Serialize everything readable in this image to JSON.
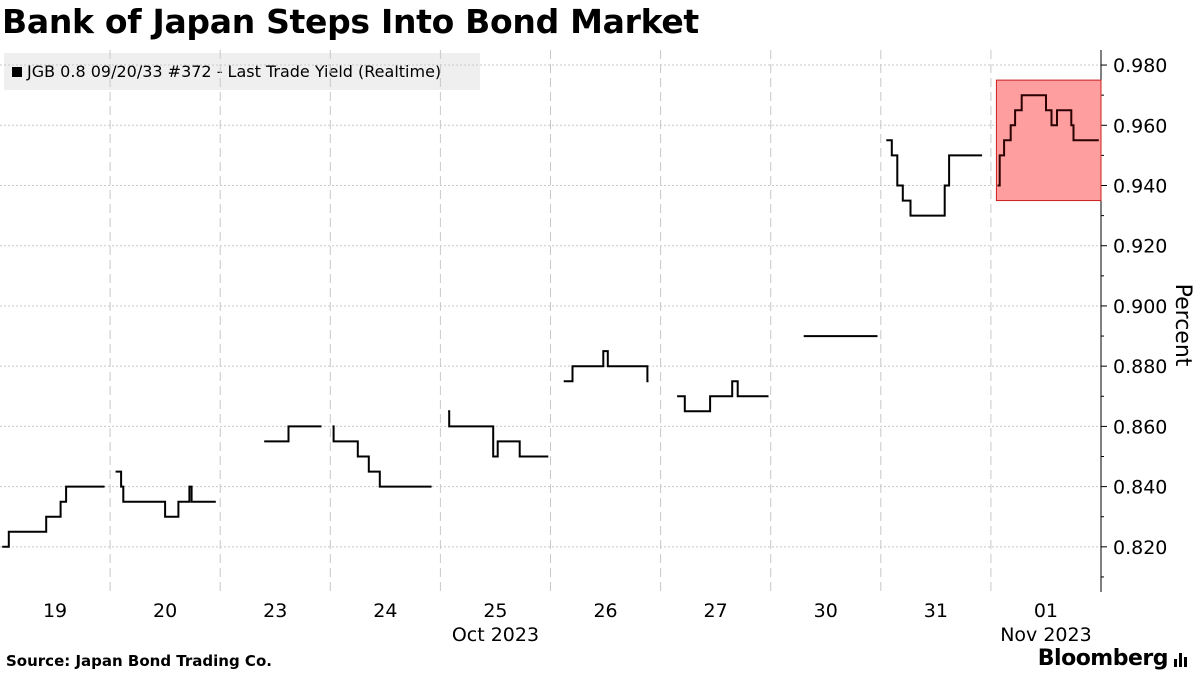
{
  "chart_data": {
    "type": "line",
    "title": "Bank of Japan Steps Into Bond Market",
    "ylabel": "Percent",
    "ylim": [
      0.805,
      0.985
    ],
    "yticks": [
      0.82,
      0.84,
      0.86,
      0.88,
      0.9,
      0.92,
      0.94,
      0.96,
      0.98
    ],
    "ytick_labels": [
      "0.820",
      "0.840",
      "0.860",
      "0.880",
      "0.900",
      "0.920",
      "0.940",
      "0.960",
      "0.980"
    ],
    "categories": [
      "19",
      "20",
      "23",
      "24",
      "25",
      "26",
      "27",
      "30",
      "31",
      "01"
    ],
    "month_labels": [
      {
        "label": "Oct 2023",
        "under_index": 4
      },
      {
        "label": "Nov 2023",
        "under_index": 9
      }
    ],
    "grid": true,
    "legend_position": "top-left",
    "line_color": "#000000",
    "highlight": {
      "day_index": 9,
      "from_frac": 0.05,
      "to_frac": 1.0,
      "y_range": [
        0.935,
        0.975
      ],
      "fill": "#ff9e9e",
      "stroke": "#cc1f1f"
    },
    "series": [
      {
        "name": "JGB 0.8 09/20/33 #372 - Last Trade Yield (Realtime)",
        "days": [
          {
            "day": 0,
            "points": [
              [
                0.02,
                0.82
              ],
              [
                0.08,
                0.825
              ],
              [
                0.42,
                0.83
              ],
              [
                0.55,
                0.835
              ],
              [
                0.6,
                0.84
              ],
              [
                0.95,
                0.84
              ]
            ]
          },
          {
            "day": 1,
            "points": [
              [
                0.05,
                0.845
              ],
              [
                0.1,
                0.84
              ],
              [
                0.12,
                0.835
              ],
              [
                0.5,
                0.83
              ],
              [
                0.62,
                0.835
              ],
              [
                0.72,
                0.84
              ],
              [
                0.74,
                0.835
              ],
              [
                0.96,
                0.835
              ]
            ]
          },
          {
            "day": 2,
            "points": [
              [
                0.4,
                0.855
              ],
              [
                0.62,
                0.86
              ],
              [
                0.92,
                0.86
              ]
            ]
          },
          {
            "day": 3,
            "points": [
              [
                0.02,
                0.86
              ],
              [
                0.03,
                0.855
              ],
              [
                0.25,
                0.85
              ],
              [
                0.35,
                0.845
              ],
              [
                0.45,
                0.84
              ],
              [
                0.92,
                0.84
              ]
            ]
          },
          {
            "day": 4,
            "points": [
              [
                0.07,
                0.865
              ],
              [
                0.08,
                0.86
              ],
              [
                0.48,
                0.85
              ],
              [
                0.52,
                0.855
              ],
              [
                0.72,
                0.85
              ],
              [
                0.98,
                0.85
              ]
            ]
          },
          {
            "day": 5,
            "points": [
              [
                0.12,
                0.875
              ],
              [
                0.2,
                0.88
              ],
              [
                0.48,
                0.885
              ],
              [
                0.52,
                0.88
              ],
              [
                0.88,
                0.875
              ],
              [
                0.89,
                0.875
              ]
            ]
          },
          {
            "day": 6,
            "points": [
              [
                0.15,
                0.87
              ],
              [
                0.22,
                0.865
              ],
              [
                0.45,
                0.87
              ],
              [
                0.65,
                0.875
              ],
              [
                0.7,
                0.87
              ],
              [
                0.98,
                0.87
              ]
            ]
          },
          {
            "day": 7,
            "points": [
              [
                0.3,
                0.89
              ],
              [
                0.97,
                0.89
              ]
            ]
          },
          {
            "day": 8,
            "points": [
              [
                0.05,
                0.955
              ],
              [
                0.1,
                0.95
              ],
              [
                0.15,
                0.94
              ],
              [
                0.2,
                0.935
              ],
              [
                0.27,
                0.93
              ],
              [
                0.58,
                0.94
              ],
              [
                0.62,
                0.95
              ],
              [
                0.92,
                0.95
              ]
            ]
          },
          {
            "day": 9,
            "points": [
              [
                0.06,
                0.94
              ],
              [
                0.08,
                0.95
              ],
              [
                0.12,
                0.955
              ],
              [
                0.18,
                0.96
              ],
              [
                0.22,
                0.965
              ],
              [
                0.28,
                0.97
              ],
              [
                0.5,
                0.965
              ],
              [
                0.55,
                0.96
              ],
              [
                0.6,
                0.965
              ],
              [
                0.73,
                0.96
              ],
              [
                0.75,
                0.955
              ],
              [
                0.98,
                0.955
              ]
            ]
          }
        ]
      }
    ]
  },
  "source": "Source: Japan Bond Trading Co.",
  "brand": "Bloomberg",
  "brand_icon": "bloomberg-terminal-icon"
}
